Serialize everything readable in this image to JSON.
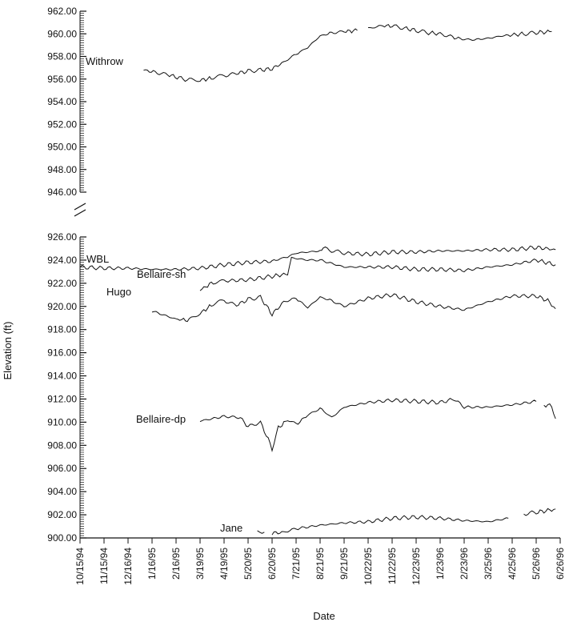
{
  "chart_data": {
    "type": "line",
    "xlabel": "Date",
    "ylabel": "Elevation (ft)",
    "x_ticks": [
      "10/15/94",
      "11/15/94",
      "12/16/94",
      "1/16/95",
      "2/16/95",
      "3/19/95",
      "4/19/95",
      "5/20/95",
      "6/20/95",
      "7/21/95",
      "8/21/95",
      "9/21/95",
      "10/22/95",
      "11/22/95",
      "12/23/95",
      "1/23/96",
      "2/23/96",
      "3/25/96",
      "4/25/96",
      "5/26/96",
      "6/26/96"
    ],
    "xlim": [
      "10/15/94",
      "6/26/96"
    ],
    "axis_break": true,
    "panels": [
      {
        "ylim": [
          946,
          962
        ],
        "y_ticks": [
          "946.00",
          "948.00",
          "950.00",
          "952.00",
          "954.00",
          "956.00",
          "958.00",
          "960.00",
          "962.00"
        ],
        "series": [
          {
            "name": "Withrow",
            "segments": [
              [
                [
                  "1/5/95",
                  956.8
                ],
                [
                  "1/20/95",
                  956.6
                ],
                [
                  "2/5/95",
                  956.4
                ],
                [
                  "2/20/95",
                  956.1
                ],
                [
                  "3/5/95",
                  955.9
                ],
                [
                  "3/19/95",
                  955.9
                ],
                [
                  "4/5/95",
                  956.1
                ],
                [
                  "4/19/95",
                  956.3
                ],
                [
                  "5/5/95",
                  956.5
                ],
                [
                  "5/20/95",
                  956.7
                ],
                [
                  "6/5/95",
                  956.8
                ],
                [
                  "6/20/95",
                  956.9
                ],
                [
                  "7/5/95",
                  957.5
                ],
                [
                  "7/21/95",
                  958.2
                ],
                [
                  "8/5/95",
                  958.8
                ],
                [
                  "8/21/95",
                  959.8
                ],
                [
                  "9/5/95",
                  960.1
                ],
                [
                  "9/21/95",
                  960.2
                ],
                [
                  "10/8/95",
                  960.3
                ]
              ],
              [
                [
                  "10/22/95",
                  960.4
                ],
                [
                  "11/5/95",
                  960.7
                ],
                [
                  "11/22/95",
                  960.7
                ],
                [
                  "12/8/95",
                  960.5
                ],
                [
                  "12/23/95",
                  960.3
                ],
                [
                  "1/8/96",
                  960.1
                ],
                [
                  "1/23/96",
                  960.0
                ],
                [
                  "2/8/96",
                  959.7
                ],
                [
                  "2/23/96",
                  959.5
                ],
                [
                  "3/10/96",
                  959.5
                ],
                [
                  "3/25/96",
                  959.6
                ],
                [
                  "4/10/96",
                  959.8
                ],
                [
                  "4/25/96",
                  959.9
                ],
                [
                  "5/10/96",
                  960.0
                ],
                [
                  "5/26/96",
                  960.1
                ],
                [
                  "6/15/96",
                  960.2
                ]
              ]
            ]
          }
        ]
      },
      {
        "ylim": [
          900,
          926
        ],
        "y_ticks": [
          "900.00",
          "902.00",
          "904.00",
          "906.00",
          "908.00",
          "910.00",
          "912.00",
          "914.00",
          "916.00",
          "918.00",
          "920.00",
          "922.00",
          "924.00",
          "926.00"
        ],
        "series": [
          {
            "name": "WBL",
            "segments": [
              [
                [
                  "10/15/94",
                  923.4
                ],
                [
                  "11/15/94",
                  923.3
                ],
                [
                  "12/16/94",
                  923.3
                ],
                [
                  "1/16/95",
                  923.2
                ],
                [
                  "2/16/95",
                  923.2
                ],
                [
                  "3/19/95",
                  923.3
                ],
                [
                  "4/19/95",
                  923.6
                ],
                [
                  "5/20/95",
                  923.8
                ],
                [
                  "6/20/95",
                  923.9
                ],
                [
                  "7/10/95",
                  924.3
                ],
                [
                  "7/21/95",
                  924.6
                ],
                [
                  "8/21/95",
                  924.8
                ],
                [
                  "8/25/95",
                  925.0
                ],
                [
                  "9/21/95",
                  924.6
                ],
                [
                  "10/22/95",
                  924.5
                ],
                [
                  "11/22/95",
                  924.7
                ],
                [
                  "12/23/95",
                  924.7
                ],
                [
                  "1/23/96",
                  924.8
                ],
                [
                  "2/23/96",
                  924.8
                ],
                [
                  "3/25/96",
                  924.9
                ],
                [
                  "4/25/96",
                  924.9
                ],
                [
                  "5/26/96",
                  925.1
                ],
                [
                  "6/20/96",
                  924.9
                ]
              ]
            ]
          },
          {
            "name": "Bellaire-sh",
            "segments": [
              [
                [
                  "3/19/95",
                  921.4
                ],
                [
                  "4/5/95",
                  922.1
                ],
                [
                  "4/19/95",
                  922.2
                ],
                [
                  "5/20/95",
                  922.3
                ],
                [
                  "6/20/95",
                  922.6
                ],
                [
                  "7/10/95",
                  922.8
                ],
                [
                  "7/15/95",
                  924.2
                ],
                [
                  "8/5/95",
                  924.0
                ],
                [
                  "8/21/95",
                  924.0
                ],
                [
                  "9/21/95",
                  923.4
                ],
                [
                  "10/22/95",
                  923.4
                ],
                [
                  "11/22/95",
                  923.4
                ],
                [
                  "12/23/95",
                  923.2
                ],
                [
                  "1/23/96",
                  923.2
                ],
                [
                  "2/23/96",
                  923.1
                ],
                [
                  "3/25/96",
                  923.4
                ],
                [
                  "4/25/96",
                  923.6
                ],
                [
                  "5/26/96",
                  924.0
                ],
                [
                  "6/20/96",
                  923.6
                ]
              ]
            ]
          },
          {
            "name": "Hugo",
            "segments": [
              [
                [
                  "1/16/95",
                  919.6
                ],
                [
                  "2/16/95",
                  918.9
                ],
                [
                  "3/5/95",
                  918.8
                ],
                [
                  "3/19/95",
                  919.4
                ],
                [
                  "4/5/95",
                  920.2
                ],
                [
                  "4/19/95",
                  920.5
                ],
                [
                  "5/5/95",
                  920.1
                ],
                [
                  "5/20/95",
                  920.6
                ],
                [
                  "6/5/95",
                  920.8
                ],
                [
                  "6/20/95",
                  919.3
                ],
                [
                  "7/5/95",
                  920.4
                ],
                [
                  "7/21/95",
                  920.7
                ],
                [
                  "8/5/95",
                  919.9
                ],
                [
                  "8/21/95",
                  920.8
                ],
                [
                  "9/5/95",
                  920.5
                ],
                [
                  "9/21/95",
                  920.0
                ],
                [
                  "10/22/95",
                  920.7
                ],
                [
                  "11/22/95",
                  921.0
                ],
                [
                  "12/23/95",
                  920.4
                ],
                [
                  "1/23/96",
                  920.0
                ],
                [
                  "2/23/96",
                  919.7
                ],
                [
                  "3/25/96",
                  920.4
                ],
                [
                  "4/25/96",
                  920.9
                ],
                [
                  "5/26/96",
                  920.9
                ],
                [
                  "6/10/96",
                  920.5
                ],
                [
                  "6/20/96",
                  919.8
                ]
              ]
            ]
          },
          {
            "name": "Bellaire-dp",
            "segments": [
              [
                [
                  "3/19/95",
                  910.1
                ],
                [
                  "4/19/95",
                  910.5
                ],
                [
                  "5/10/95",
                  910.4
                ],
                [
                  "5/20/95",
                  909.6
                ],
                [
                  "6/5/95",
                  910.0
                ],
                [
                  "6/15/95",
                  908.5
                ],
                [
                  "6/20/95",
                  907.7
                ],
                [
                  "6/28/95",
                  909.5
                ],
                [
                  "7/10/95",
                  910.2
                ],
                [
                  "7/21/95",
                  909.8
                ],
                [
                  "8/5/95",
                  910.6
                ],
                [
                  "8/21/95",
                  911.2
                ],
                [
                  "9/5/95",
                  910.4
                ],
                [
                  "9/21/95",
                  911.3
                ],
                [
                  "10/22/95",
                  911.7
                ],
                [
                  "11/22/95",
                  911.9
                ],
                [
                  "12/23/95",
                  911.8
                ],
                [
                  "1/23/96",
                  911.7
                ],
                [
                  "2/10/96",
                  912.0
                ],
                [
                  "2/23/96",
                  911.3
                ],
                [
                  "3/25/96",
                  911.3
                ],
                [
                  "4/25/96",
                  911.5
                ],
                [
                  "5/26/96",
                  911.8
                ]
              ],
              [
                [
                  "6/5/96",
                  911.5
                ],
                [
                  "6/15/96",
                  911.4
                ],
                [
                  "6/20/96",
                  910.3
                ]
              ]
            ]
          },
          {
            "name": "Jane",
            "segments": [
              [
                [
                  "6/1/95",
                  900.7
                ],
                [
                  "6/10/95",
                  900.5
                ]
              ],
              [
                [
                  "6/20/95",
                  900.4
                ],
                [
                  "7/5/95",
                  900.5
                ],
                [
                  "7/21/95",
                  900.8
                ],
                [
                  "8/21/95",
                  901.1
                ],
                [
                  "9/21/95",
                  901.3
                ],
                [
                  "10/22/95",
                  901.4
                ],
                [
                  "11/22/95",
                  901.7
                ],
                [
                  "12/23/95",
                  901.8
                ],
                [
                  "1/23/96",
                  901.7
                ],
                [
                  "2/23/96",
                  901.5
                ],
                [
                  "3/25/96",
                  901.4
                ],
                [
                  "4/20/96",
                  901.7
                ]
              ],
              [
                [
                  "5/10/96",
                  902.1
                ],
                [
                  "5/26/96",
                  902.2
                ],
                [
                  "6/20/96",
                  902.5
                ]
              ]
            ]
          }
        ]
      }
    ]
  }
}
